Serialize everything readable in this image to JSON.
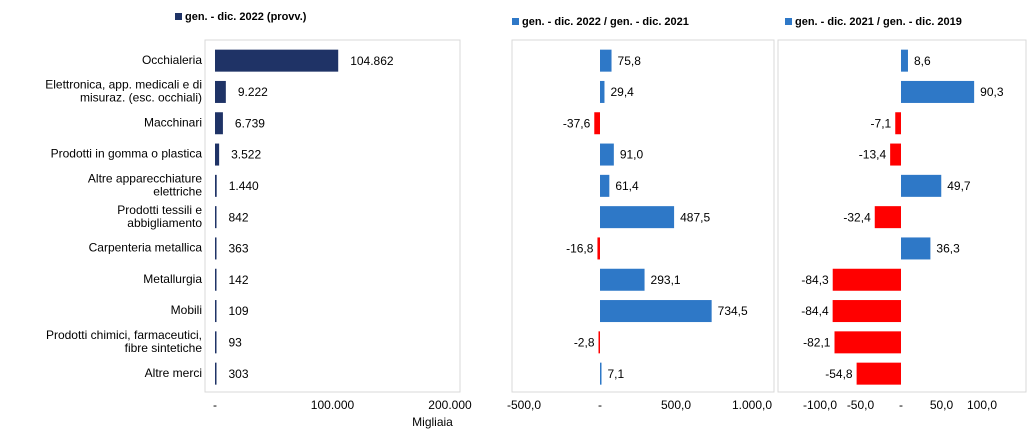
{
  "chart_data": [
    {
      "type": "bar",
      "orientation": "horizontal",
      "legend": "gen. - dic. 2022 (provv.)",
      "color": "#1f3366",
      "categories": [
        [
          "Occhialeria"
        ],
        [
          "Elettronica, app. medicali e di",
          "misuraz. (esc. occhiali)"
        ],
        [
          "Macchinari"
        ],
        [
          "Prodotti in gomma o plastica"
        ],
        [
          "Altre apparecchiature",
          "elettriche"
        ],
        [
          "Prodotti tessili e",
          "abbigliamento"
        ],
        [
          "Carpenteria metallica"
        ],
        [
          "Metallurgia"
        ],
        [
          "Mobili"
        ],
        [
          "Prodotti chimici, farmaceutici,",
          "fibre sintetiche"
        ],
        [
          "Altre merci"
        ]
      ],
      "values": [
        104862,
        9222,
        6739,
        3522,
        1440,
        842,
        363,
        142,
        109,
        93,
        303
      ],
      "value_labels": [
        "104.862",
        "9.222",
        "6.739",
        "3.522",
        "1.440",
        "842",
        "363",
        "142",
        "109",
        "93",
        "303"
      ],
      "xlim": [
        0,
        200000
      ],
      "xticks": [
        {
          "value": 0,
          "label": "-"
        },
        {
          "value": 100000,
          "label": "100.000"
        },
        {
          "value": 200000,
          "label": "200.000"
        }
      ],
      "xlabel": "Migliaia"
    },
    {
      "type": "bar",
      "orientation": "horizontal",
      "legend": "gen. - dic. 2022 / gen. - dic. 2021",
      "color": "#2e78c7",
      "negative_color": "#ff0000",
      "values": [
        75.8,
        29.4,
        -37.6,
        91.0,
        61.4,
        487.5,
        -16.8,
        293.1,
        734.5,
        -2.8,
        7.1
      ],
      "value_labels": [
        "75,8",
        "29,4",
        "-37,6",
        "91,0",
        "61,4",
        "487,5",
        "-16,8",
        "293,1",
        "734,5",
        "-2,8",
        "7,1"
      ],
      "xlim": [
        -500,
        1000
      ],
      "xticks": [
        {
          "value": -500,
          "label": "-500,0"
        },
        {
          "value": 0,
          "label": "-"
        },
        {
          "value": 500,
          "label": "500,0"
        },
        {
          "value": 1000,
          "label": "1.000,0"
        }
      ]
    },
    {
      "type": "bar",
      "orientation": "horizontal",
      "legend": "gen. - dic. 2021 / gen. - dic. 2019",
      "color": "#2e78c7",
      "negative_color": "#ff0000",
      "values": [
        8.6,
        90.3,
        -7.1,
        -13.4,
        49.7,
        -32.4,
        36.3,
        -84.3,
        -84.4,
        -82.1,
        -54.8
      ],
      "value_labels": [
        "8,6",
        "90,3",
        "-7,1",
        "-13,4",
        "49,7",
        "-32,4",
        "36,3",
        "-84,3",
        "-84,4",
        "-82,1",
        "-54,8"
      ],
      "xlim": [
        -100,
        100
      ],
      "xticks": [
        {
          "value": -100,
          "label": "-100,0"
        },
        {
          "value": -50,
          "label": "-50,0"
        },
        {
          "value": 0,
          "label": "-"
        },
        {
          "value": 50,
          "label": "50,0"
        },
        {
          "value": 100,
          "label": "100,0"
        }
      ]
    }
  ]
}
